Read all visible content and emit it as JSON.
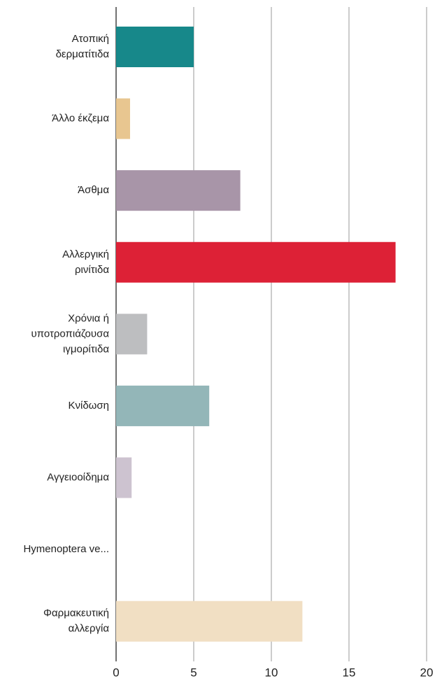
{
  "chart_data": {
    "type": "bar",
    "orientation": "horizontal",
    "categories": [
      "Ατοπική\nδερματίτιδα",
      "Άλλο έκζεμα",
      "Άσθμα",
      "Αλλεργική\nρινίτιδα",
      "Χρόνια ή\nυποτροπιάζουσα\nιγμορίτιδα",
      "Κνίδωση",
      "Αγγειοοίδημα",
      "Hymenoptera ve...",
      "Φαρμακευτική\nαλλεργία"
    ],
    "values": [
      5,
      0.9,
      8,
      18,
      2,
      6,
      1,
      0,
      12
    ],
    "colors": [
      "#17888a",
      "#e8c690",
      "#a895a8",
      "#dd2136",
      "#bdbec0",
      "#93b6b8",
      "#cdc3d0",
      "#999999",
      "#f1dfc3"
    ],
    "xlim": [
      0,
      20
    ],
    "xticks": [
      0,
      5,
      10,
      15,
      20
    ],
    "grid": true
  }
}
